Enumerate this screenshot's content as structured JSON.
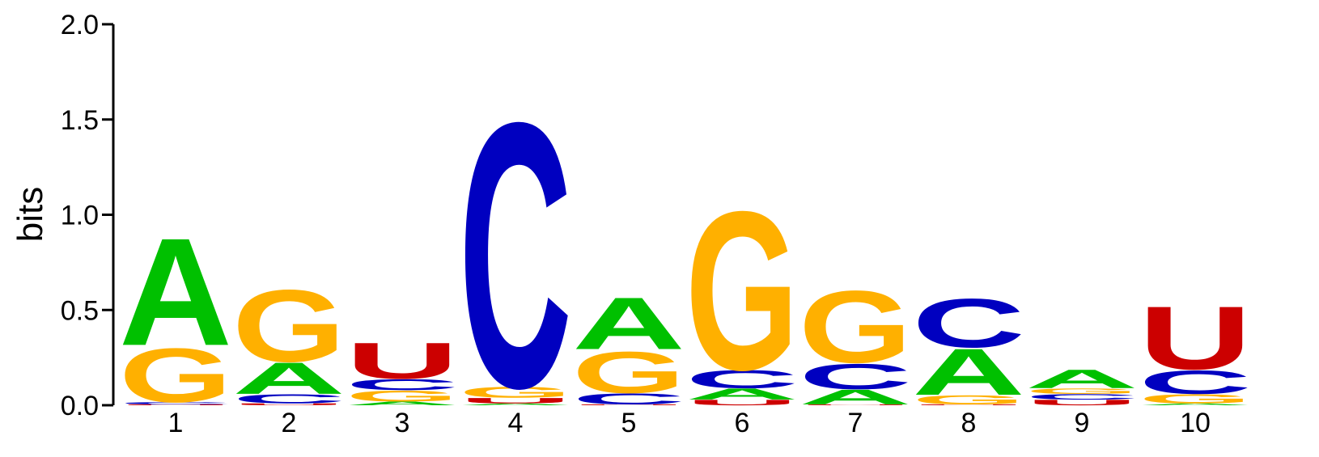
{
  "chart_data": {
    "type": "sequence-logo",
    "ylabel": "bits",
    "ylim": [
      0,
      2.0
    ],
    "yticks": [
      "0.0",
      "0.5",
      "1.0",
      "1.5",
      "2.0"
    ],
    "ytick_values": [
      0,
      0.5,
      1.0,
      1.5,
      2.0
    ],
    "positions": [
      "1",
      "2",
      "3",
      "4",
      "5",
      "6",
      "7",
      "8",
      "9",
      "10"
    ],
    "colors": {
      "A": "#00c000",
      "C": "#0000c0",
      "G": "#ffb000",
      "U": "#cc0000"
    },
    "columns": [
      {
        "position": "1",
        "stack": [
          {
            "letter": "U",
            "bits": 0.005
          },
          {
            "letter": "C",
            "bits": 0.012
          },
          {
            "letter": "G",
            "bits": 0.3
          },
          {
            "letter": "A",
            "bits": 0.58
          }
        ]
      },
      {
        "position": "2",
        "stack": [
          {
            "letter": "U",
            "bits": 0.01
          },
          {
            "letter": "C",
            "bits": 0.05
          },
          {
            "letter": "A",
            "bits": 0.17
          },
          {
            "letter": "G",
            "bits": 0.4
          }
        ]
      },
      {
        "position": "3",
        "stack": [
          {
            "letter": "A",
            "bits": 0.02
          },
          {
            "letter": "G",
            "bits": 0.06
          },
          {
            "letter": "C",
            "bits": 0.06
          },
          {
            "letter": "U",
            "bits": 0.2
          }
        ]
      },
      {
        "position": "4",
        "stack": [
          {
            "letter": "A",
            "bits": 0.01
          },
          {
            "letter": "U",
            "bits": 0.03
          },
          {
            "letter": "G",
            "bits": 0.06
          },
          {
            "letter": "C",
            "bits": 1.47
          }
        ]
      },
      {
        "position": "5",
        "stack": [
          {
            "letter": "U",
            "bits": 0.005
          },
          {
            "letter": "C",
            "bits": 0.06
          },
          {
            "letter": "G",
            "bits": 0.23
          },
          {
            "letter": "A",
            "bits": 0.28
          }
        ]
      },
      {
        "position": "6",
        "stack": [
          {
            "letter": "U",
            "bits": 0.03
          },
          {
            "letter": "A",
            "bits": 0.06
          },
          {
            "letter": "C",
            "bits": 0.1
          },
          {
            "letter": "G",
            "bits": 0.88
          }
        ]
      },
      {
        "position": "7",
        "stack": [
          {
            "letter": "U",
            "bits": 0.005
          },
          {
            "letter": "A",
            "bits": 0.08
          },
          {
            "letter": "C",
            "bits": 0.14
          },
          {
            "letter": "G",
            "bits": 0.4
          }
        ]
      },
      {
        "position": "8",
        "stack": [
          {
            "letter": "U",
            "bits": 0.005
          },
          {
            "letter": "G",
            "bits": 0.05
          },
          {
            "letter": "A",
            "bits": 0.25
          },
          {
            "letter": "C",
            "bits": 0.27
          }
        ]
      },
      {
        "position": "9",
        "stack": [
          {
            "letter": "U",
            "bits": 0.03
          },
          {
            "letter": "C",
            "bits": 0.03
          },
          {
            "letter": "G",
            "bits": 0.03
          },
          {
            "letter": "A",
            "bits": 0.1
          }
        ]
      },
      {
        "position": "10",
        "stack": [
          {
            "letter": "A",
            "bits": 0.01
          },
          {
            "letter": "G",
            "bits": 0.05
          },
          {
            "letter": "C",
            "bits": 0.13
          },
          {
            "letter": "U",
            "bits": 0.35
          }
        ]
      }
    ]
  }
}
